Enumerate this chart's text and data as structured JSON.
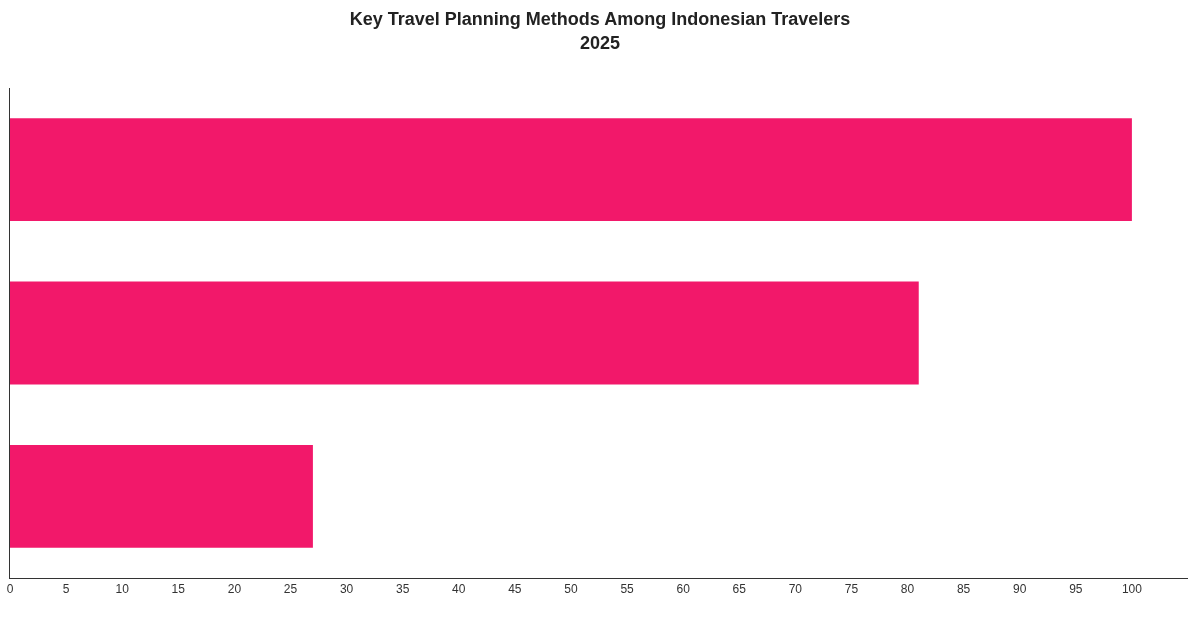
{
  "chart_data": {
    "type": "bar",
    "orientation": "horizontal",
    "title": "Key Travel Planning Methods Among Indonesian Travelers\n2025",
    "categories": [
      null,
      null,
      null
    ],
    "values": [
      100,
      81,
      27
    ],
    "color": "#f2186a",
    "xlim": [
      0,
      105
    ],
    "xticks": [
      0,
      5,
      10,
      15,
      20,
      25,
      30,
      35,
      40,
      45,
      50,
      55,
      60,
      65,
      70,
      75,
      80,
      85,
      90,
      95,
      100
    ],
    "grid": false
  }
}
